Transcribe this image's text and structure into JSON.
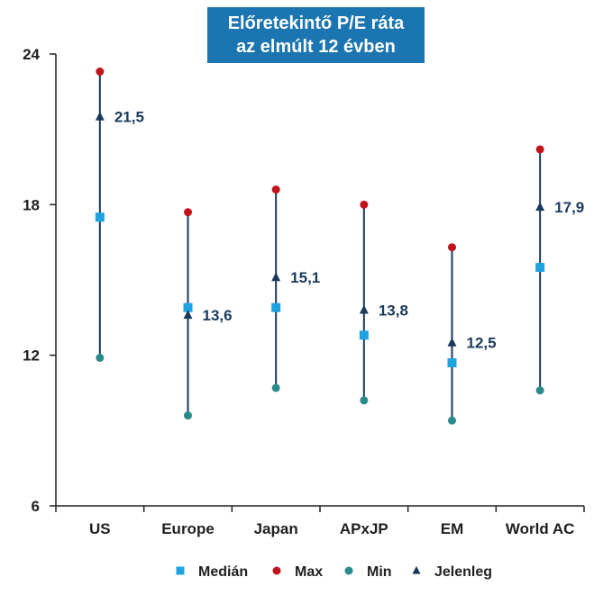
{
  "chart_data": {
    "type": "scatter",
    "title_line1": "Előretekintő P/E ráta",
    "title_line2": "az elmúlt 12 évben",
    "categories": [
      "US",
      "Europe",
      "Japan",
      "APxJP",
      "EM",
      "World AC"
    ],
    "ylim": [
      6,
      24
    ],
    "yticks": [
      6,
      12,
      18,
      24
    ],
    "series": [
      {
        "name": "Medián",
        "marker": "square",
        "color": "#1fa3e0",
        "values": [
          17.5,
          13.9,
          13.9,
          12.8,
          11.7,
          15.5
        ]
      },
      {
        "name": "Max",
        "marker": "circle",
        "color": "#c0141c",
        "values": [
          23.3,
          17.7,
          18.6,
          18.0,
          16.3,
          20.2
        ]
      },
      {
        "name": "Min",
        "marker": "circle",
        "color": "#2b8a8a",
        "values": [
          11.9,
          9.6,
          10.7,
          10.2,
          9.4,
          10.6
        ]
      },
      {
        "name": "Jelenleg",
        "marker": "triangle",
        "color": "#1a3a5c",
        "values": [
          21.5,
          13.6,
          15.1,
          13.8,
          12.5,
          17.9
        ]
      }
    ],
    "value_labels": [
      "21,5",
      "13,6",
      "15,1",
      "13,8",
      "12,5",
      "17,9"
    ],
    "range_line_color": "#1a3a5c",
    "legend_position": "bottom"
  }
}
